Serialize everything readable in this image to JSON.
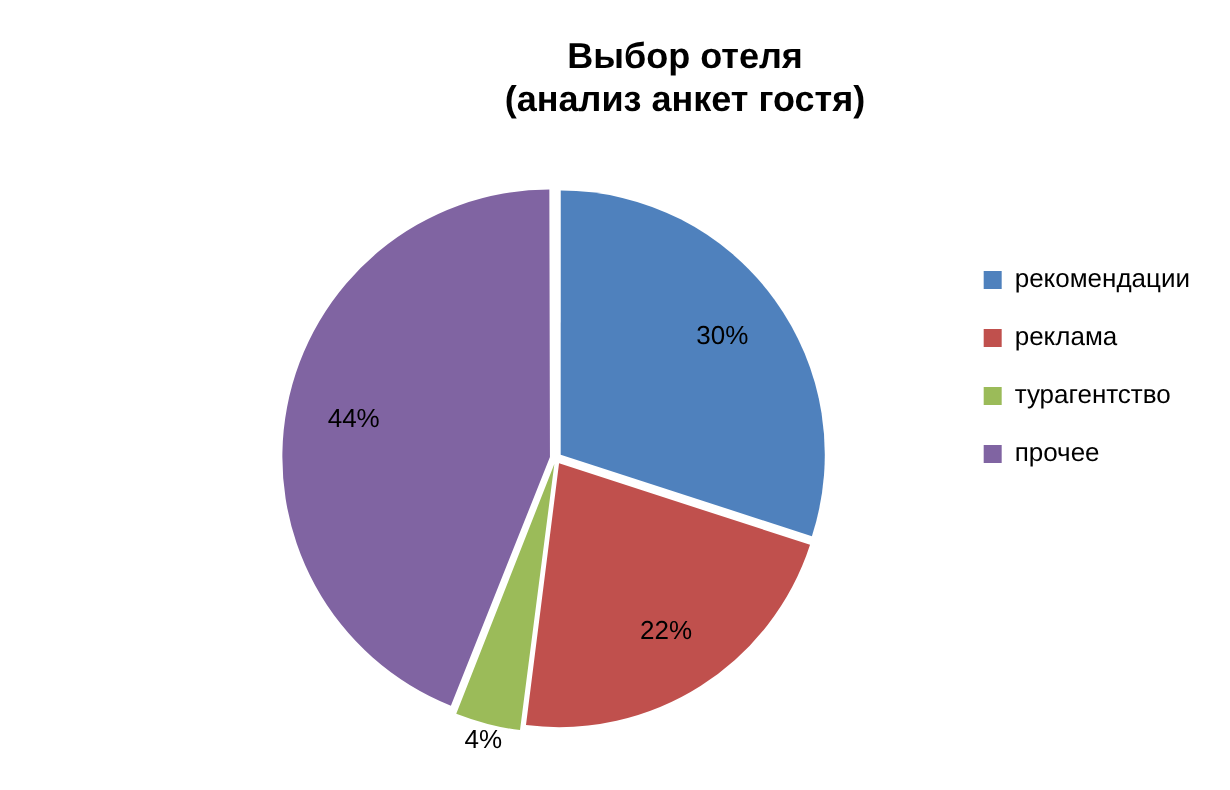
{
  "chart_data": {
    "type": "pie",
    "title": "Выбор отеля\n(анализ анкет гостя)",
    "categories": [
      "рекомендации",
      "реклама",
      "турагентство",
      "прочее"
    ],
    "values": [
      30,
      22,
      4,
      44
    ],
    "colors": [
      "#4f81bd",
      "#c0504d",
      "#9bbb59",
      "#8064a2"
    ],
    "value_labels": [
      "30%",
      "22%",
      "4%",
      "44%"
    ],
    "legend": "right"
  }
}
